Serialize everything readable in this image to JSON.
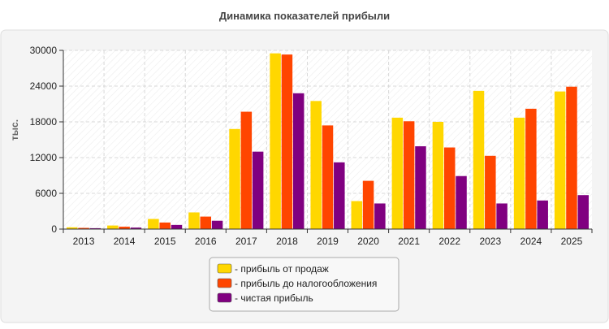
{
  "chart_data": {
    "type": "bar",
    "title": "Динамика показателей прибыли",
    "ylabel": "тыс.",
    "xlabel": "",
    "ylim": [
      0,
      30000
    ],
    "yticks": [
      "0",
      "6000",
      "12000",
      "18000",
      "24000",
      "30000"
    ],
    "grid": true,
    "legend_position": "bottom-center",
    "categories": [
      "2013",
      "2014",
      "2015",
      "2016",
      "2017",
      "2018",
      "2019",
      "2020",
      "2021",
      "2022",
      "2023",
      "2024",
      "2025"
    ],
    "series": [
      {
        "name": "- прибыль от продаж",
        "color": "#FFD700",
        "values": [
          300,
          600,
          1700,
          2800,
          16800,
          29500,
          21500,
          4700,
          18700,
          18000,
          23200,
          18700,
          23100
        ]
      },
      {
        "name": "- прибыль до налогообложения",
        "color": "#FF4500",
        "values": [
          200,
          400,
          1100,
          2100,
          19700,
          29300,
          17400,
          8100,
          18100,
          13700,
          12300,
          20200,
          23900
        ]
      },
      {
        "name": "- чистая прибыль",
        "color": "#800080",
        "values": [
          150,
          250,
          700,
          1400,
          13000,
          22800,
          11200,
          4300,
          13900,
          8900,
          4300,
          4800,
          5700
        ]
      }
    ]
  }
}
